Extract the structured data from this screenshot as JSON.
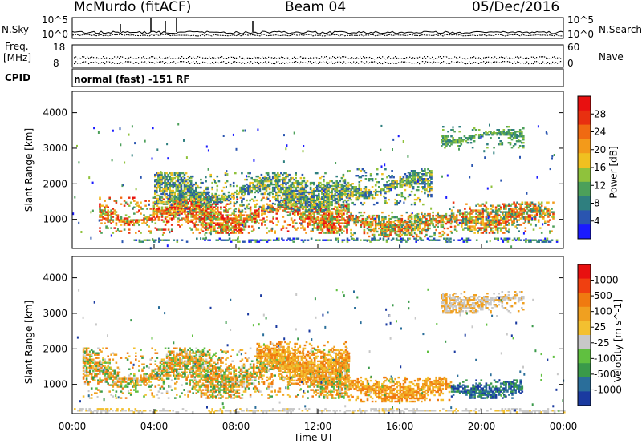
{
  "header": {
    "station": "McMurdo (fitACF)",
    "beam": "Beam 04",
    "date": "05/Dec/2016"
  },
  "noise_panel": {
    "left_label": "N.Sky",
    "right_label": "N.Search",
    "left_ticks": [
      "10^5",
      "10^0"
    ],
    "right_ticks": [
      "10^5",
      "10^0"
    ]
  },
  "freq_panel": {
    "left_label_line1": "Freq.",
    "left_label_line2": "[MHz]",
    "right_label": "Nave",
    "left_ticks": [
      "18",
      "8"
    ],
    "right_ticks": [
      "60",
      "0"
    ]
  },
  "cpid": {
    "label": "CPID",
    "value": "normal (fast) -151 RF"
  },
  "time_axis": {
    "title": "Time UT",
    "ticks": [
      "00:00",
      "04:00",
      "08:00",
      "12:00",
      "16:00",
      "20:00",
      "00:00"
    ]
  },
  "chart_data": [
    {
      "type": "heatmap",
      "title": "",
      "xlabel": "Time UT",
      "ylabel": "Slant Range [km]",
      "xlim_hours": [
        0,
        24
      ],
      "ylim": [
        180,
        4600
      ],
      "yticks": [
        1000,
        2000,
        3000,
        4000
      ],
      "colorbar": {
        "label": "Power [dB]",
        "ticks": [
          4,
          8,
          12,
          16,
          20,
          24,
          28
        ],
        "colors": [
          "#1a1aff",
          "#2a55b0",
          "#2f7f7f",
          "#4ca05a",
          "#8fc23c",
          "#f0c020",
          "#f39a1a",
          "#f06a12",
          "#e83010",
          "#e81010"
        ]
      },
      "regions": [
        {
          "t": [
            3.0,
            23.7
          ],
          "r": [
            350,
            450
          ],
          "level": "mixed-low"
        },
        {
          "t": [
            1.3,
            13.5
          ],
          "r": [
            600,
            1600
          ],
          "level": "high"
        },
        {
          "t": [
            4.0,
            13.5
          ],
          "r": [
            1200,
            2300
          ],
          "level": "medium"
        },
        {
          "t": [
            13.5,
            18.5
          ],
          "r": [
            500,
            1200
          ],
          "level": "medium-high"
        },
        {
          "t": [
            18.5,
            23.5
          ],
          "r": [
            600,
            1500
          ],
          "level": "medium-high"
        },
        {
          "t": [
            13.5,
            17.5
          ],
          "r": [
            1400,
            2400
          ],
          "level": "medium"
        },
        {
          "t": [
            18.0,
            22.0
          ],
          "r": [
            3000,
            3600
          ],
          "level": "low"
        }
      ]
    },
    {
      "type": "heatmap",
      "title": "",
      "xlabel": "Time UT",
      "ylabel": "Slant Range [km]",
      "xlim_hours": [
        0,
        24
      ],
      "ylim": [
        180,
        4600
      ],
      "yticks": [
        1000,
        2000,
        3000,
        4000
      ],
      "colorbar": {
        "label": "Velocity [m s^-1]",
        "ticks": [
          1000,
          500,
          100,
          25,
          -25,
          -100,
          -500,
          -1000
        ],
        "colors": [
          "#1a3aa0",
          "#2a6e9a",
          "#3a9a4a",
          "#60c040",
          "#c8c8c8",
          "#f3c030",
          "#f0a020",
          "#f07a10",
          "#f04010",
          "#e81010"
        ]
      },
      "regions": [
        {
          "t": [
            0.0,
            24.0
          ],
          "r": [
            200,
            300
          ],
          "level": "gray"
        },
        {
          "t": [
            0.5,
            13.5
          ],
          "r": [
            600,
            2000
          ],
          "level": "orange-green"
        },
        {
          "t": [
            9.0,
            13.5
          ],
          "r": [
            1000,
            2200
          ],
          "level": "orange"
        },
        {
          "t": [
            13.5,
            18.5
          ],
          "r": [
            500,
            1200
          ],
          "level": "orange"
        },
        {
          "t": [
            18.5,
            22.0
          ],
          "r": [
            600,
            1100
          ],
          "level": "blue"
        },
        {
          "t": [
            18.0,
            22.0
          ],
          "r": [
            3000,
            3600
          ],
          "level": "orange-gray"
        }
      ]
    }
  ]
}
